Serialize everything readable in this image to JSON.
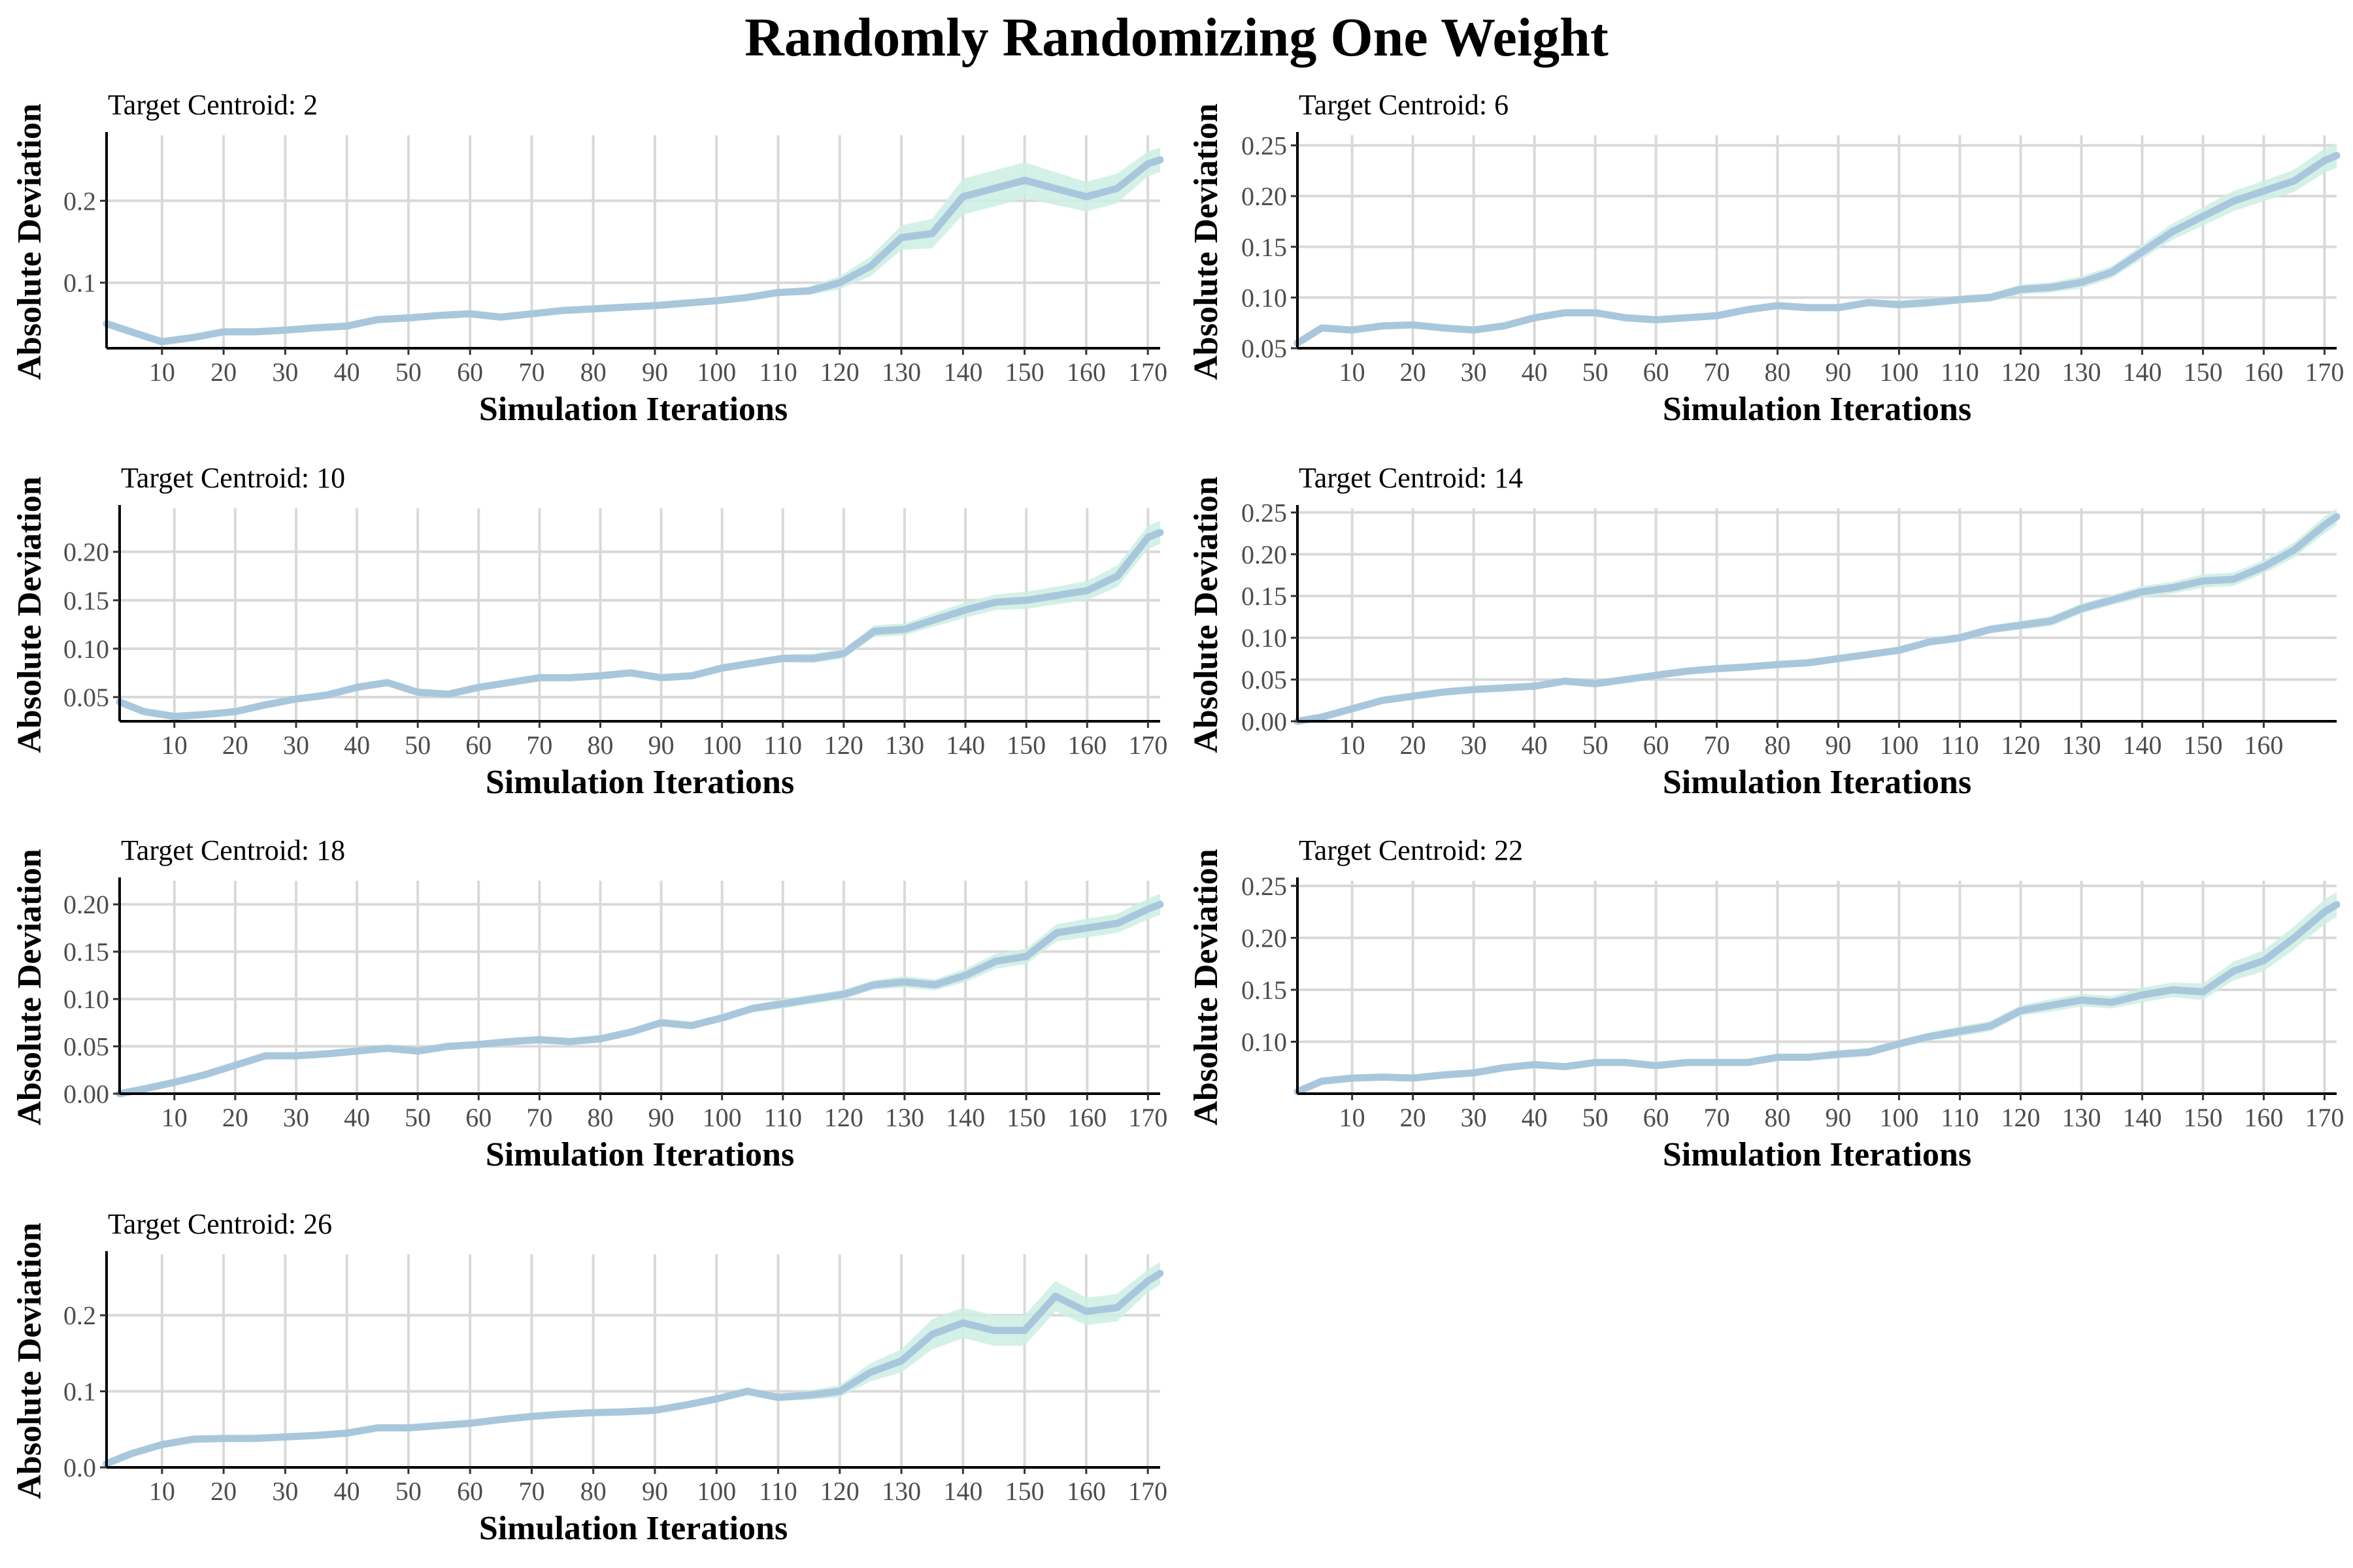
{
  "title": "Randomly Randomizing One Weight",
  "chart_data": [
    {
      "type": "line",
      "subtitle": "Target Centroid: 2",
      "xlabel": "Simulation Iterations",
      "ylabel": "Absolute Deviation",
      "xlim": [
        1,
        172
      ],
      "ylim": [
        0.02,
        0.28
      ],
      "xticks": [
        10,
        20,
        30,
        40,
        50,
        60,
        70,
        80,
        90,
        100,
        110,
        120,
        130,
        140,
        150,
        160,
        170
      ],
      "yticks": [
        0.1,
        0.2
      ],
      "ytick_labels": [
        "0.1",
        "0.2"
      ],
      "x": [
        1,
        5,
        10,
        15,
        20,
        25,
        30,
        35,
        40,
        45,
        50,
        55,
        60,
        65,
        70,
        75,
        80,
        85,
        90,
        95,
        100,
        105,
        110,
        115,
        120,
        125,
        130,
        135,
        140,
        145,
        150,
        155,
        160,
        165,
        170,
        172
      ],
      "y": [
        0.05,
        0.04,
        0.028,
        0.033,
        0.04,
        0.04,
        0.042,
        0.045,
        0.047,
        0.055,
        0.057,
        0.06,
        0.062,
        0.058,
        0.062,
        0.066,
        0.068,
        0.07,
        0.072,
        0.075,
        0.078,
        0.082,
        0.088,
        0.09,
        0.1,
        0.12,
        0.155,
        0.16,
        0.205,
        0.215,
        0.225,
        0.215,
        0.205,
        0.215,
        0.245,
        0.25
      ],
      "band": [
        0.004,
        0.004,
        0.003,
        0.003,
        0.003,
        0.003,
        0.003,
        0.003,
        0.003,
        0.003,
        0.003,
        0.003,
        0.003,
        0.003,
        0.003,
        0.003,
        0.003,
        0.003,
        0.003,
        0.003,
        0.003,
        0.004,
        0.004,
        0.005,
        0.008,
        0.012,
        0.015,
        0.018,
        0.022,
        0.022,
        0.022,
        0.02,
        0.018,
        0.018,
        0.015,
        0.015
      ]
    },
    {
      "type": "line",
      "subtitle": "Target Centroid: 6",
      "xlabel": "Simulation Iterations",
      "ylabel": "Absolute Deviation",
      "xlim": [
        1,
        172
      ],
      "ylim": [
        0.05,
        0.26
      ],
      "xticks": [
        10,
        20,
        30,
        40,
        50,
        60,
        70,
        80,
        90,
        100,
        110,
        120,
        130,
        140,
        150,
        160,
        170
      ],
      "yticks": [
        0.05,
        0.1,
        0.15,
        0.2,
        0.25
      ],
      "ytick_labels": [
        "0.05",
        "0.10",
        "0.15",
        "0.20",
        "0.25"
      ],
      "x": [
        1,
        5,
        10,
        15,
        20,
        25,
        30,
        35,
        40,
        45,
        50,
        55,
        60,
        65,
        70,
        75,
        80,
        85,
        90,
        95,
        100,
        105,
        110,
        115,
        120,
        125,
        130,
        135,
        140,
        145,
        150,
        155,
        160,
        165,
        170,
        172
      ],
      "y": [
        0.055,
        0.07,
        0.068,
        0.072,
        0.073,
        0.07,
        0.068,
        0.072,
        0.08,
        0.085,
        0.085,
        0.08,
        0.078,
        0.08,
        0.082,
        0.088,
        0.092,
        0.09,
        0.09,
        0.095,
        0.093,
        0.095,
        0.098,
        0.1,
        0.108,
        0.11,
        0.115,
        0.125,
        0.145,
        0.165,
        0.18,
        0.195,
        0.205,
        0.215,
        0.235,
        0.24
      ],
      "band": [
        0.003,
        0.003,
        0.003,
        0.003,
        0.003,
        0.003,
        0.003,
        0.003,
        0.003,
        0.003,
        0.003,
        0.003,
        0.003,
        0.003,
        0.003,
        0.003,
        0.003,
        0.003,
        0.003,
        0.003,
        0.004,
        0.004,
        0.004,
        0.004,
        0.005,
        0.005,
        0.006,
        0.006,
        0.007,
        0.008,
        0.009,
        0.01,
        0.01,
        0.011,
        0.012,
        0.012
      ]
    },
    {
      "type": "line",
      "subtitle": "Target Centroid: 10",
      "xlabel": "Simulation Iterations",
      "ylabel": "Absolute Deviation",
      "xlim": [
        1,
        172
      ],
      "ylim": [
        0.025,
        0.245
      ],
      "xticks": [
        10,
        20,
        30,
        40,
        50,
        60,
        70,
        80,
        90,
        100,
        110,
        120,
        130,
        140,
        150,
        160,
        170
      ],
      "yticks": [
        0.05,
        0.1,
        0.15,
        0.2
      ],
      "ytick_labels": [
        "0.05",
        "0.10",
        "0.15",
        "0.20"
      ],
      "x": [
        1,
        5,
        10,
        15,
        20,
        25,
        30,
        35,
        40,
        45,
        50,
        55,
        60,
        65,
        70,
        75,
        80,
        85,
        90,
        95,
        100,
        105,
        110,
        115,
        120,
        125,
        130,
        135,
        140,
        145,
        150,
        155,
        160,
        165,
        170,
        172
      ],
      "y": [
        0.045,
        0.035,
        0.03,
        0.032,
        0.035,
        0.042,
        0.048,
        0.052,
        0.06,
        0.065,
        0.055,
        0.053,
        0.06,
        0.065,
        0.07,
        0.07,
        0.072,
        0.075,
        0.07,
        0.072,
        0.08,
        0.085,
        0.09,
        0.09,
        0.095,
        0.118,
        0.12,
        0.13,
        0.14,
        0.148,
        0.15,
        0.155,
        0.16,
        0.175,
        0.215,
        0.22
      ],
      "band": [
        0.003,
        0.003,
        0.003,
        0.003,
        0.003,
        0.003,
        0.003,
        0.003,
        0.003,
        0.003,
        0.003,
        0.003,
        0.003,
        0.003,
        0.003,
        0.003,
        0.003,
        0.003,
        0.003,
        0.003,
        0.004,
        0.004,
        0.004,
        0.005,
        0.005,
        0.006,
        0.006,
        0.007,
        0.008,
        0.008,
        0.009,
        0.009,
        0.01,
        0.011,
        0.012,
        0.012
      ]
    },
    {
      "type": "line",
      "subtitle": "Target Centroid: 14",
      "xlabel": "Simulation Iterations",
      "ylabel": "Absolute Deviation",
      "xlim": [
        1,
        172
      ],
      "ylim": [
        0.0,
        0.255
      ],
      "xticks": [
        10,
        20,
        30,
        40,
        50,
        60,
        70,
        80,
        90,
        100,
        110,
        120,
        130,
        140,
        150,
        160
      ],
      "yticks": [
        0.0,
        0.05,
        0.1,
        0.15,
        0.2,
        0.25
      ],
      "ytick_labels": [
        "0.00",
        "0.05",
        "0.10",
        "0.15",
        "0.20",
        "0.25"
      ],
      "x": [
        1,
        5,
        10,
        15,
        20,
        25,
        30,
        35,
        40,
        45,
        50,
        55,
        60,
        65,
        70,
        75,
        80,
        85,
        90,
        95,
        100,
        105,
        110,
        115,
        120,
        125,
        130,
        135,
        140,
        145,
        150,
        155,
        160,
        165,
        170,
        172
      ],
      "y": [
        0.0,
        0.005,
        0.015,
        0.025,
        0.03,
        0.035,
        0.038,
        0.04,
        0.042,
        0.048,
        0.045,
        0.05,
        0.055,
        0.06,
        0.063,
        0.065,
        0.068,
        0.07,
        0.075,
        0.08,
        0.085,
        0.095,
        0.1,
        0.11,
        0.115,
        0.12,
        0.135,
        0.145,
        0.155,
        0.16,
        0.168,
        0.17,
        0.185,
        0.205,
        0.235,
        0.245
      ],
      "band": [
        0.002,
        0.002,
        0.002,
        0.002,
        0.002,
        0.003,
        0.003,
        0.003,
        0.003,
        0.003,
        0.003,
        0.003,
        0.003,
        0.003,
        0.003,
        0.003,
        0.003,
        0.004,
        0.004,
        0.004,
        0.004,
        0.004,
        0.005,
        0.005,
        0.005,
        0.006,
        0.006,
        0.006,
        0.007,
        0.007,
        0.008,
        0.008,
        0.008,
        0.009,
        0.01,
        0.01
      ]
    },
    {
      "type": "line",
      "subtitle": "Target Centroid: 18",
      "xlabel": "Simulation Iterations",
      "ylabel": "Absolute Deviation",
      "xlim": [
        1,
        172
      ],
      "ylim": [
        0.0,
        0.225
      ],
      "xticks": [
        10,
        20,
        30,
        40,
        50,
        60,
        70,
        80,
        90,
        100,
        110,
        120,
        130,
        140,
        150,
        160,
        170
      ],
      "yticks": [
        0.0,
        0.05,
        0.1,
        0.15,
        0.2
      ],
      "ytick_labels": [
        "0.00",
        "0.05",
        "0.10",
        "0.15",
        "0.20"
      ],
      "x": [
        1,
        5,
        10,
        15,
        20,
        25,
        30,
        35,
        40,
        45,
        50,
        55,
        60,
        65,
        70,
        75,
        80,
        85,
        90,
        95,
        100,
        105,
        110,
        115,
        120,
        125,
        130,
        135,
        140,
        145,
        150,
        155,
        160,
        165,
        170,
        172
      ],
      "y": [
        0.0,
        0.005,
        0.012,
        0.02,
        0.03,
        0.04,
        0.04,
        0.042,
        0.045,
        0.048,
        0.045,
        0.05,
        0.052,
        0.055,
        0.057,
        0.055,
        0.058,
        0.065,
        0.075,
        0.072,
        0.08,
        0.09,
        0.095,
        0.1,
        0.105,
        0.115,
        0.118,
        0.115,
        0.125,
        0.14,
        0.145,
        0.17,
        0.175,
        0.18,
        0.195,
        0.2
      ],
      "band": [
        0.002,
        0.002,
        0.002,
        0.002,
        0.002,
        0.003,
        0.003,
        0.003,
        0.003,
        0.003,
        0.003,
        0.003,
        0.003,
        0.003,
        0.003,
        0.003,
        0.003,
        0.003,
        0.004,
        0.004,
        0.004,
        0.004,
        0.005,
        0.005,
        0.005,
        0.005,
        0.006,
        0.006,
        0.007,
        0.008,
        0.008,
        0.009,
        0.01,
        0.01,
        0.011,
        0.011
      ]
    },
    {
      "type": "line",
      "subtitle": "Target Centroid: 22",
      "xlabel": "Simulation Iterations",
      "ylabel": "Absolute Deviation",
      "xlim": [
        1,
        172
      ],
      "ylim": [
        0.05,
        0.255
      ],
      "xticks": [
        10,
        20,
        30,
        40,
        50,
        60,
        70,
        80,
        90,
        100,
        110,
        120,
        130,
        140,
        150,
        160,
        170
      ],
      "yticks": [
        0.1,
        0.15,
        0.2,
        0.25
      ],
      "ytick_labels": [
        "0.10",
        "0.15",
        "0.20",
        "0.25"
      ],
      "x": [
        1,
        5,
        10,
        15,
        20,
        25,
        30,
        35,
        40,
        45,
        50,
        55,
        60,
        65,
        70,
        75,
        80,
        85,
        90,
        95,
        100,
        105,
        110,
        115,
        120,
        125,
        130,
        135,
        140,
        145,
        150,
        155,
        160,
        165,
        170,
        172
      ],
      "y": [
        0.052,
        0.062,
        0.065,
        0.066,
        0.065,
        0.068,
        0.07,
        0.075,
        0.078,
        0.076,
        0.08,
        0.08,
        0.077,
        0.08,
        0.08,
        0.08,
        0.085,
        0.085,
        0.088,
        0.09,
        0.098,
        0.105,
        0.11,
        0.115,
        0.13,
        0.135,
        0.14,
        0.138,
        0.145,
        0.15,
        0.148,
        0.168,
        0.178,
        0.2,
        0.225,
        0.232
      ],
      "band": [
        0.003,
        0.003,
        0.003,
        0.003,
        0.003,
        0.003,
        0.003,
        0.003,
        0.003,
        0.003,
        0.003,
        0.003,
        0.003,
        0.003,
        0.003,
        0.003,
        0.003,
        0.003,
        0.004,
        0.004,
        0.004,
        0.004,
        0.005,
        0.005,
        0.005,
        0.006,
        0.006,
        0.006,
        0.007,
        0.007,
        0.008,
        0.009,
        0.01,
        0.011,
        0.012,
        0.012
      ]
    },
    {
      "type": "line",
      "subtitle": "Target Centroid: 26",
      "xlabel": "Simulation Iterations",
      "ylabel": "Absolute Deviation",
      "xlim": [
        1,
        172
      ],
      "ylim": [
        0.0,
        0.28
      ],
      "xticks": [
        10,
        20,
        30,
        40,
        50,
        60,
        70,
        80,
        90,
        100,
        110,
        120,
        130,
        140,
        150,
        160,
        170
      ],
      "yticks": [
        0.0,
        0.1,
        0.2
      ],
      "ytick_labels": [
        "0.0",
        "0.1",
        "0.2"
      ],
      "x": [
        1,
        5,
        10,
        15,
        20,
        25,
        30,
        35,
        40,
        45,
        50,
        55,
        60,
        65,
        70,
        75,
        80,
        85,
        90,
        95,
        100,
        105,
        110,
        115,
        120,
        125,
        130,
        135,
        140,
        145,
        150,
        155,
        160,
        165,
        170,
        172
      ],
      "y": [
        0.005,
        0.018,
        0.03,
        0.037,
        0.038,
        0.038,
        0.04,
        0.042,
        0.045,
        0.052,
        0.052,
        0.055,
        0.058,
        0.063,
        0.067,
        0.07,
        0.072,
        0.073,
        0.075,
        0.082,
        0.09,
        0.1,
        0.092,
        0.095,
        0.1,
        0.125,
        0.14,
        0.175,
        0.19,
        0.18,
        0.18,
        0.225,
        0.205,
        0.21,
        0.245,
        0.255
      ],
      "band": [
        0.003,
        0.003,
        0.003,
        0.003,
        0.003,
        0.003,
        0.003,
        0.003,
        0.003,
        0.003,
        0.003,
        0.003,
        0.003,
        0.003,
        0.003,
        0.003,
        0.003,
        0.003,
        0.004,
        0.004,
        0.004,
        0.005,
        0.005,
        0.006,
        0.008,
        0.012,
        0.015,
        0.02,
        0.02,
        0.02,
        0.02,
        0.02,
        0.018,
        0.018,
        0.015,
        0.015
      ]
    }
  ]
}
